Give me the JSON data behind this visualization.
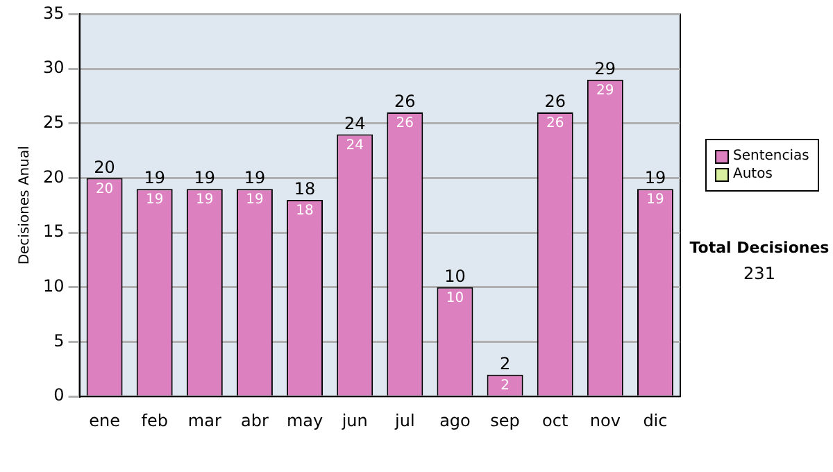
{
  "chart_data": {
    "type": "bar",
    "stacked": true,
    "ylabel": "Decisiones Anual",
    "categories": [
      "ene",
      "feb",
      "mar",
      "abr",
      "may",
      "jun",
      "jul",
      "ago",
      "sep",
      "oct",
      "nov",
      "dic"
    ],
    "series": [
      {
        "name": "Sentencias",
        "color": "#dd80c0",
        "values": [
          20,
          19,
          19,
          19,
          18,
          24,
          26,
          10,
          2,
          26,
          29,
          19
        ],
        "value_labels": [
          "20",
          "19",
          "19",
          "19",
          "18",
          "24",
          "26",
          "10",
          "2",
          "26",
          "29",
          "19"
        ]
      },
      {
        "name": "Autos",
        "color": "#d8f0a0",
        "values": [
          0,
          0,
          0,
          0,
          0,
          0,
          0,
          0,
          0,
          0,
          0,
          0
        ]
      }
    ],
    "totals": [
      "20",
      "19",
      "19",
      "19",
      "18",
      "24",
      "26",
      "10",
      "2",
      "26",
      "29",
      "19"
    ],
    "ylim": [
      0,
      35
    ],
    "yticks": [
      0,
      5,
      10,
      15,
      20,
      25,
      30,
      35
    ],
    "grid": "y",
    "legend": "right",
    "annotations": [
      "Total Decisiones",
      "231"
    ]
  }
}
